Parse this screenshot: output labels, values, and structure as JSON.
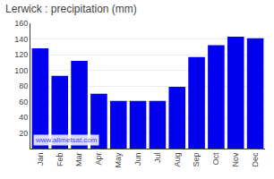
{
  "chart_data": {
    "type": "bar",
    "title": "Lerwick : precipitation (mm)",
    "categories": [
      "Jan",
      "Feb",
      "Mar",
      "Apr",
      "May",
      "Jun",
      "Jul",
      "Aug",
      "Sep",
      "Oct",
      "Nov",
      "Dec"
    ],
    "values": [
      128,
      93,
      112,
      70,
      61,
      61,
      61,
      79,
      117,
      132,
      143,
      141
    ],
    "color": "#0000ee",
    "ylim": [
      0,
      160
    ],
    "yticks": [
      20,
      40,
      60,
      80,
      100,
      120,
      140,
      160
    ],
    "grid": true,
    "annotations": [
      {
        "text": "www.allmetsat.com",
        "color": "#4444ff"
      }
    ]
  }
}
